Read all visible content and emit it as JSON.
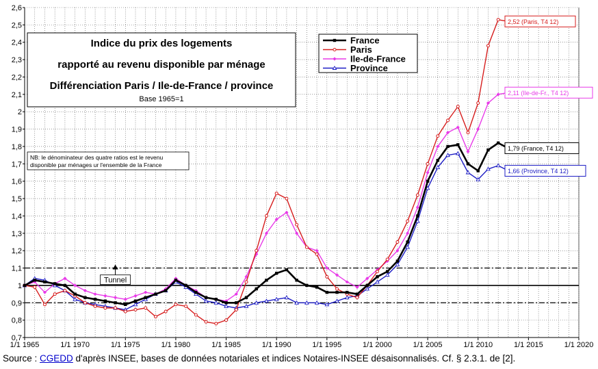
{
  "chart_data": {
    "type": "line",
    "title_lines": [
      "Indice du prix des logements",
      "rapporté au revenu disponible par ménage",
      "Différenciation Paris / Ile-de-France / province"
    ],
    "base_note": "Base 1965=1",
    "ylim": [
      0.7,
      2.6
    ],
    "xlim": [
      1965,
      2020
    ],
    "yticks": [
      0.7,
      0.8,
      0.9,
      1,
      1.1,
      1.2,
      1.3,
      1.4,
      1.5,
      1.6,
      1.7,
      1.8,
      1.9,
      2,
      2.1,
      2.2,
      2.3,
      2.4,
      2.5,
      2.6
    ],
    "ytick_labels": [
      "0,7",
      "0,8",
      "0,9",
      "1",
      "1,1",
      "1,2",
      "1,3",
      "1,4",
      "1,5",
      "1,6",
      "1,7",
      "1,8",
      "1,9",
      "2",
      "2,1",
      "2,2",
      "2,3",
      "2,4",
      "2,5",
      "2,6"
    ],
    "xticks": [
      1965,
      1970,
      1975,
      1980,
      1985,
      1990,
      1995,
      2000,
      2005,
      2010,
      2015,
      2020
    ],
    "xtick_labels": [
      "1/1 1965",
      "1/1 1970",
      "1/1 1975",
      "1/1 1980",
      "1/1 1985",
      "1/1 1990",
      "1/1 1995",
      "1/1 2000",
      "1/1 2005",
      "1/1 2010",
      "1/1 2015",
      "1/1 2020"
    ],
    "grid": true,
    "legend_position": "top-center",
    "reference_lines": [
      0.9,
      1.0,
      1.1
    ],
    "series": [
      {
        "name": "France",
        "color": "#000000",
        "x": [
          1965,
          1966,
          1967,
          1968,
          1969,
          1970,
          1971,
          1972,
          1973,
          1974,
          1975,
          1976,
          1977,
          1978,
          1979,
          1980,
          1981,
          1982,
          1983,
          1984,
          1985,
          1986,
          1987,
          1988,
          1989,
          1990,
          1991,
          1992,
          1993,
          1994,
          1995,
          1996,
          1997,
          1998,
          1999,
          2000,
          2001,
          2002,
          2003,
          2004,
          2005,
          2006,
          2007,
          2008,
          2009,
          2010,
          2011,
          2012,
          2013
        ],
        "y": [
          1.0,
          1.03,
          1.02,
          1.01,
          1.0,
          0.95,
          0.93,
          0.92,
          0.91,
          0.9,
          0.89,
          0.91,
          0.93,
          0.95,
          0.97,
          1.03,
          1.0,
          0.96,
          0.93,
          0.92,
          0.9,
          0.9,
          0.93,
          0.98,
          1.03,
          1.07,
          1.09,
          1.03,
          1.0,
          0.99,
          0.96,
          0.96,
          0.96,
          0.95,
          1.0,
          1.05,
          1.08,
          1.14,
          1.25,
          1.4,
          1.6,
          1.72,
          1.8,
          1.81,
          1.7,
          1.66,
          1.78,
          1.82,
          1.79
        ]
      },
      {
        "name": "Paris",
        "color": "#d61c1c",
        "x": [
          1965,
          1966,
          1967,
          1968,
          1969,
          1970,
          1971,
          1972,
          1973,
          1974,
          1975,
          1976,
          1977,
          1978,
          1979,
          1980,
          1981,
          1982,
          1983,
          1984,
          1985,
          1986,
          1987,
          1988,
          1989,
          1990,
          1991,
          1992,
          1993,
          1994,
          1995,
          1996,
          1997,
          1998,
          1999,
          2000,
          2001,
          2002,
          2003,
          2004,
          2005,
          2006,
          2007,
          2008,
          2009,
          2010,
          2011,
          2012,
          2013
        ],
        "y": [
          1.0,
          0.99,
          0.89,
          0.95,
          0.97,
          0.94,
          0.9,
          0.88,
          0.87,
          0.87,
          0.85,
          0.86,
          0.87,
          0.82,
          0.85,
          0.89,
          0.88,
          0.83,
          0.79,
          0.78,
          0.8,
          0.86,
          1.02,
          1.2,
          1.4,
          1.53,
          1.5,
          1.35,
          1.22,
          1.18,
          1.05,
          0.98,
          0.95,
          0.93,
          1.0,
          1.08,
          1.15,
          1.25,
          1.37,
          1.52,
          1.7,
          1.86,
          1.95,
          2.03,
          1.88,
          2.05,
          2.38,
          2.53,
          2.52
        ]
      },
      {
        "name": "Ile-de-France",
        "color": "#e83be8",
        "x": [
          1965,
          1966,
          1967,
          1968,
          1969,
          1970,
          1971,
          1972,
          1973,
          1974,
          1975,
          1976,
          1977,
          1978,
          1979,
          1980,
          1981,
          1982,
          1983,
          1984,
          1985,
          1986,
          1987,
          1988,
          1989,
          1990,
          1991,
          1992,
          1993,
          1994,
          1995,
          1996,
          1997,
          1998,
          1999,
          2000,
          2001,
          2002,
          2003,
          2004,
          2005,
          2006,
          2007,
          2008,
          2009,
          2010,
          2011,
          2012,
          2013
        ],
        "y": [
          1.0,
          1.02,
          0.96,
          1.01,
          1.04,
          1.0,
          0.97,
          0.95,
          0.94,
          0.93,
          0.92,
          0.94,
          0.96,
          0.95,
          0.98,
          1.04,
          1.0,
          0.97,
          0.93,
          0.92,
          0.91,
          0.95,
          1.05,
          1.18,
          1.3,
          1.38,
          1.42,
          1.3,
          1.22,
          1.2,
          1.1,
          1.06,
          1.02,
          0.99,
          1.04,
          1.09,
          1.14,
          1.2,
          1.3,
          1.45,
          1.65,
          1.8,
          1.88,
          1.91,
          1.77,
          1.9,
          2.05,
          2.1,
          2.11
        ]
      },
      {
        "name": "Province",
        "color": "#1c1cc4",
        "x": [
          1965,
          1966,
          1967,
          1968,
          1969,
          1970,
          1971,
          1972,
          1973,
          1974,
          1975,
          1976,
          1977,
          1978,
          1979,
          1980,
          1981,
          1982,
          1983,
          1984,
          1985,
          1986,
          1987,
          1988,
          1989,
          1990,
          1991,
          1992,
          1993,
          1994,
          1995,
          1996,
          1997,
          1998,
          1999,
          2000,
          2001,
          2002,
          2003,
          2004,
          2005,
          2006,
          2007,
          2008,
          2009,
          2010,
          2011,
          2012,
          2013
        ],
        "y": [
          1.0,
          1.04,
          1.03,
          1.0,
          0.97,
          0.92,
          0.9,
          0.89,
          0.88,
          0.87,
          0.86,
          0.89,
          0.92,
          0.95,
          0.97,
          1.02,
          0.99,
          0.95,
          0.91,
          0.9,
          0.88,
          0.87,
          0.88,
          0.9,
          0.91,
          0.92,
          0.93,
          0.9,
          0.9,
          0.9,
          0.89,
          0.91,
          0.93,
          0.94,
          0.98,
          1.02,
          1.06,
          1.12,
          1.22,
          1.37,
          1.56,
          1.68,
          1.75,
          1.76,
          1.65,
          1.61,
          1.67,
          1.69,
          1.66
        ]
      }
    ],
    "end_labels": [
      {
        "text": "2,52 (Paris, T4 12)",
        "series": "Paris"
      },
      {
        "text": "2,11 (Ile-de-Fr., T4 12)",
        "series": "Ile-de-France"
      },
      {
        "text": "1,79 (France, T4 12)",
        "series": "France"
      },
      {
        "text": "1,66 (Province, T4 12)",
        "series": "Province"
      }
    ],
    "note_lines": [
      "NB: le dénominateur des quatre ratios est le revenu",
      "disponible par ménages ur l'ensemble de la France"
    ],
    "annotation": {
      "text": "Tunnel",
      "x": 1974,
      "y": 1.1
    }
  },
  "source": {
    "prefix": "Source : ",
    "link": "CGEDD",
    "rest": " d'après INSEE, bases de données notariales et indices Notaires-INSEE désaisonnalisés.  Cf. § 2.3.1. de [2]."
  }
}
